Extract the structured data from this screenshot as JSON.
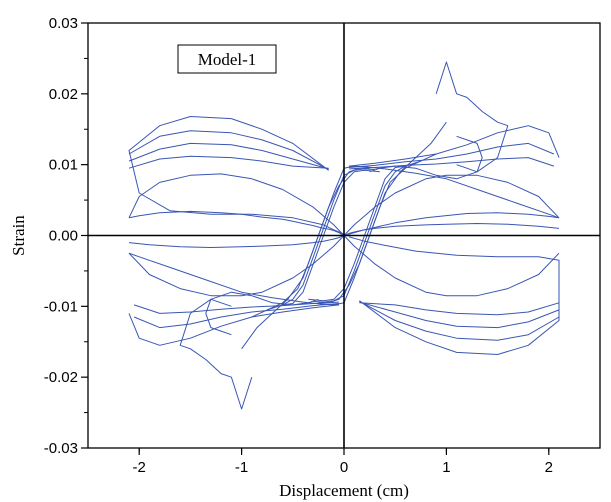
{
  "chart_data": {
    "type": "line",
    "title": "",
    "xlabel": "Displacement (cm)",
    "ylabel": "Strain",
    "xlim": [
      -2.5,
      2.5
    ],
    "ylim": [
      -0.03,
      0.03
    ],
    "x_ticks": [
      {
        "value": -2,
        "label": "-2"
      },
      {
        "value": -1,
        "label": "-1"
      },
      {
        "value": 0,
        "label": "0"
      },
      {
        "value": 1,
        "label": "1"
      },
      {
        "value": 2,
        "label": "2"
      }
    ],
    "y_ticks": [
      {
        "value": 0.03,
        "label": "0.03"
      },
      {
        "value": 0.02,
        "label": "0.02"
      },
      {
        "value": 0.01,
        "label": "0.01"
      },
      {
        "value": 0.0,
        "label": "0.00"
      },
      {
        "value": -0.01,
        "label": "-0.01"
      },
      {
        "value": -0.02,
        "label": "-0.02"
      },
      {
        "value": -0.03,
        "label": "-0.03"
      }
    ],
    "grid": false,
    "zero_lines": true,
    "legend": {
      "label": "Model-1",
      "placement": "top-left"
    },
    "series_color": "#3a56b4",
    "series": [
      {
        "name": "",
        "x": [
          0,
          -0.05,
          -0.1,
          -0.15,
          -0.2,
          -0.3,
          -0.4,
          -0.5,
          -0.6,
          -0.8,
          -1.0,
          -1.2,
          -1.5,
          -1.8,
          -2.0,
          -2.1
        ],
        "y": [
          0,
          0.0004,
          0.0007,
          0.0009,
          0.001,
          0.0014,
          0.0017,
          0.002,
          0.0023,
          0.0026,
          0.003,
          0.0032,
          0.0034,
          0.0032,
          0.0028,
          0.0025
        ]
      },
      {
        "name": "",
        "x": [
          -2.1,
          -2.0,
          -1.8,
          -1.5,
          -1.2,
          -0.9,
          -0.6,
          -0.3,
          -0.1,
          0
        ],
        "y": [
          0.0025,
          0.0055,
          0.0075,
          0.0085,
          0.0087,
          0.008,
          0.0065,
          0.004,
          0.0015,
          0
        ]
      },
      {
        "name": "",
        "x": [
          0,
          0.1,
          0.3,
          0.5,
          0.8,
          1.0,
          1.3,
          1.6,
          1.9,
          2.1
        ],
        "y": [
          0,
          0.0015,
          0.004,
          0.006,
          0.008,
          0.0085,
          0.0085,
          0.0075,
          0.0055,
          0.0025
        ]
      },
      {
        "name": "",
        "x": [
          2.1,
          2.0,
          1.8,
          1.5,
          1.2,
          0.8,
          0.5,
          0.2,
          0
        ],
        "y": [
          0.0025,
          0.0027,
          0.003,
          0.0032,
          0.0031,
          0.0025,
          0.0018,
          0.0008,
          0
        ]
      },
      {
        "name": "",
        "x": [
          -0.15,
          -0.5,
          -0.8,
          -1.1,
          -1.5,
          -1.8,
          -2.1,
          -2.0,
          -1.7,
          -1.3,
          -0.9,
          -0.5,
          -0.2,
          -0.1,
          0
        ],
        "y": [
          0.0092,
          0.013,
          0.015,
          0.0165,
          0.0168,
          0.0155,
          0.012,
          0.006,
          0.0035,
          0.003,
          0.003,
          0.0025,
          0.0015,
          0.0008,
          0.0002
        ]
      },
      {
        "name": "",
        "x": [
          -0.15,
          -0.5,
          -0.8,
          -1.1,
          -1.5,
          -1.8,
          -2.1
        ],
        "y": [
          0.0093,
          0.012,
          0.0135,
          0.0145,
          0.0148,
          0.014,
          0.0115
        ]
      },
      {
        "name": "",
        "x": [
          -0.15,
          -0.5,
          -0.8,
          -1.1,
          -1.5,
          -1.8,
          -2.1
        ],
        "y": [
          0.0094,
          0.0108,
          0.012,
          0.0128,
          0.013,
          0.0122,
          0.0105
        ]
      },
      {
        "name": "",
        "x": [
          -0.15,
          -0.5,
          -0.8,
          -1.1,
          -1.5,
          -1.8,
          -2.1
        ],
        "y": [
          0.0095,
          0.0098,
          0.0105,
          0.011,
          0.0112,
          0.0108,
          0.0095
        ]
      },
      {
        "name": "",
        "x": [
          0.05,
          0.3,
          0.6,
          0.9,
          1.2,
          1.5,
          1.8,
          2.0,
          2.1
        ],
        "y": [
          0.0098,
          0.0102,
          0.0108,
          0.0115,
          0.0128,
          0.0145,
          0.0155,
          0.0145,
          0.011
        ]
      },
      {
        "name": "",
        "x": [
          0.05,
          0.3,
          0.6,
          0.9,
          1.2,
          1.5,
          1.8,
          2.05
        ],
        "y": [
          0.0096,
          0.0099,
          0.0104,
          0.0108,
          0.0115,
          0.0125,
          0.013,
          0.0115
        ]
      },
      {
        "name": "",
        "x": [
          0.05,
          0.3,
          0.6,
          0.9,
          1.2,
          1.5,
          1.8,
          2.05
        ],
        "y": [
          0.0094,
          0.0096,
          0.0099,
          0.0101,
          0.0104,
          0.0108,
          0.011,
          0.0098
        ]
      },
      {
        "name": "",
        "x": [
          2.1,
          2.0,
          1.7,
          1.4,
          1.0,
          0.7,
          0.4,
          0.2,
          0.05
        ],
        "y": [
          0.0025,
          0.003,
          0.0045,
          0.006,
          0.008,
          0.0088,
          0.0094,
          0.0097,
          0.0098
        ]
      },
      {
        "name": "",
        "x": [
          0.9,
          1.0,
          1.1,
          1.2,
          1.35,
          1.5,
          1.6,
          1.5,
          1.3,
          1.1,
          0.9,
          0.7,
          0.5,
          0.35,
          0.25
        ],
        "y": [
          0.02,
          0.0245,
          0.02,
          0.0195,
          0.0175,
          0.016,
          0.0155,
          0.011,
          0.009,
          0.008,
          0.0085,
          0.0095,
          0.0098,
          0.0095,
          0.009
        ]
      },
      {
        "name": "",
        "x": [
          -0.9,
          -1.0,
          -1.1,
          -1.2,
          -1.35,
          -1.5,
          -1.6,
          -1.5,
          -1.3,
          -1.1,
          -0.9,
          -0.7,
          -0.5,
          -0.35,
          -0.25
        ],
        "y": [
          -0.02,
          -0.0245,
          -0.02,
          -0.0195,
          -0.0175,
          -0.016,
          -0.0155,
          -0.011,
          -0.009,
          -0.008,
          -0.0085,
          -0.0095,
          -0.0098,
          -0.0095,
          -0.009
        ]
      },
      {
        "name": "",
        "x": [
          -1.0,
          -0.85,
          -0.7,
          -0.55,
          -0.4,
          -0.3,
          -0.2,
          -0.1,
          0.0,
          0.1,
          0.2
        ],
        "y": [
          -0.016,
          -0.013,
          -0.011,
          -0.009,
          -0.006,
          -0.002,
          0.002,
          0.006,
          0.0095,
          0.0098,
          0.0097
        ]
      },
      {
        "name": "",
        "x": [
          -0.9,
          -0.75,
          -0.6,
          -0.45,
          -0.35,
          -0.25,
          -0.15,
          -0.05,
          0.05,
          0.15,
          0.25
        ],
        "y": [
          -0.0115,
          -0.0105,
          -0.0095,
          -0.0075,
          -0.004,
          0.0,
          0.004,
          0.007,
          0.009,
          0.0095,
          0.0095
        ]
      },
      {
        "name": "",
        "x": [
          -0.75,
          -0.6,
          -0.5,
          -0.4,
          -0.3,
          -0.2,
          -0.1,
          0.0,
          0.1,
          0.2,
          0.3
        ],
        "y": [
          -0.0105,
          -0.0098,
          -0.009,
          -0.007,
          -0.003,
          0.001,
          0.005,
          0.0085,
          0.0092,
          0.0094,
          0.0093
        ]
      },
      {
        "name": "",
        "x": [
          -0.6,
          -0.5,
          -0.4,
          -0.3,
          -0.2,
          -0.1,
          0.0,
          0.1,
          0.2,
          0.35
        ],
        "y": [
          -0.0098,
          -0.0096,
          -0.008,
          -0.004,
          0.0,
          0.004,
          0.0075,
          0.009,
          0.0092,
          0.009
        ]
      },
      {
        "name": "",
        "x": [
          1.0,
          0.85,
          0.7,
          0.55,
          0.4,
          0.3,
          0.2,
          0.1,
          0.0,
          -0.1,
          -0.2
        ],
        "y": [
          0.016,
          0.013,
          0.011,
          0.009,
          0.006,
          0.002,
          -0.002,
          -0.006,
          -0.0095,
          -0.0098,
          -0.0097
        ]
      },
      {
        "name": "",
        "x": [
          0.9,
          0.75,
          0.6,
          0.45,
          0.35,
          0.25,
          0.15,
          0.05,
          -0.05,
          -0.15,
          -0.25
        ],
        "y": [
          0.0115,
          0.0105,
          0.0095,
          0.0075,
          0.004,
          0.0,
          -0.004,
          -0.007,
          -0.009,
          -0.0095,
          -0.0095
        ]
      },
      {
        "name": "",
        "x": [
          0.75,
          0.6,
          0.5,
          0.4,
          0.3,
          0.2,
          0.1,
          0.0,
          -0.1,
          -0.2,
          -0.3
        ],
        "y": [
          0.0105,
          0.0098,
          0.009,
          0.007,
          0.003,
          -0.001,
          -0.005,
          -0.0085,
          -0.0092,
          -0.0094,
          -0.0093
        ]
      },
      {
        "name": "",
        "x": [
          0.6,
          0.5,
          0.4,
          0.3,
          0.2,
          0.1,
          0.0,
          -0.1,
          -0.2,
          -0.35
        ],
        "y": [
          0.0098,
          0.0096,
          0.008,
          0.004,
          0.0,
          -0.004,
          -0.0075,
          -0.009,
          -0.0092,
          -0.009
        ]
      },
      {
        "name": "",
        "x": [
          -0.05,
          -0.3,
          -0.6,
          -0.9,
          -1.2,
          -1.5,
          -1.8,
          -2.0,
          -2.1
        ],
        "y": [
          -0.0098,
          -0.0102,
          -0.0108,
          -0.0115,
          -0.0128,
          -0.0145,
          -0.0155,
          -0.0145,
          -0.011
        ]
      },
      {
        "name": "",
        "x": [
          -0.05,
          -0.3,
          -0.6,
          -0.9,
          -1.2,
          -1.5,
          -1.8,
          -2.05
        ],
        "y": [
          -0.0096,
          -0.0099,
          -0.0104,
          -0.0108,
          -0.0115,
          -0.0125,
          -0.013,
          -0.0115
        ]
      },
      {
        "name": "",
        "x": [
          -0.05,
          -0.3,
          -0.6,
          -0.9,
          -1.2,
          -1.5,
          -1.8,
          -2.05
        ],
        "y": [
          -0.0094,
          -0.0096,
          -0.0099,
          -0.0101,
          -0.0104,
          -0.0108,
          -0.011,
          -0.0098
        ]
      },
      {
        "name": "",
        "x": [
          -2.1,
          -2.0,
          -1.7,
          -1.4,
          -1.0,
          -0.7,
          -0.4,
          -0.2,
          -0.05
        ],
        "y": [
          -0.0025,
          -0.003,
          -0.0045,
          -0.006,
          -0.008,
          -0.0088,
          -0.0094,
          -0.0097,
          -0.0098
        ]
      },
      {
        "name": "",
        "x": [
          0.15,
          0.5,
          0.8,
          1.1,
          1.5,
          1.8,
          2.1,
          2.1,
          1.9,
          1.5,
          1.1,
          0.7,
          0.4,
          0.2,
          0.05
        ],
        "y": [
          -0.0092,
          -0.013,
          -0.015,
          -0.0165,
          -0.0168,
          -0.0155,
          -0.012,
          -0.0035,
          -0.003,
          -0.003,
          -0.0028,
          -0.0022,
          -0.0014,
          -0.0008,
          -0.0002
        ]
      },
      {
        "name": "",
        "x": [
          0.15,
          0.5,
          0.8,
          1.1,
          1.5,
          1.8,
          2.1
        ],
        "y": [
          -0.0093,
          -0.012,
          -0.0135,
          -0.0145,
          -0.0148,
          -0.014,
          -0.0115
        ]
      },
      {
        "name": "",
        "x": [
          0.15,
          0.5,
          0.8,
          1.1,
          1.5,
          1.8,
          2.1
        ],
        "y": [
          -0.0094,
          -0.0108,
          -0.012,
          -0.0128,
          -0.013,
          -0.0122,
          -0.0105
        ]
      },
      {
        "name": "",
        "x": [
          0.15,
          0.5,
          0.8,
          1.1,
          1.5,
          1.8,
          2.1
        ],
        "y": [
          -0.0095,
          -0.0098,
          -0.0105,
          -0.011,
          -0.0112,
          -0.0108,
          -0.0095
        ]
      },
      {
        "name": "",
        "x": [
          0,
          0.1,
          0.3,
          0.5,
          0.8,
          1.0,
          1.3,
          1.6,
          1.9,
          2.1
        ],
        "y": [
          0,
          -0.0015,
          -0.004,
          -0.006,
          -0.008,
          -0.0085,
          -0.0085,
          -0.0075,
          -0.0055,
          -0.0025
        ]
      },
      {
        "name": "",
        "x": [
          0,
          -0.1,
          -0.3,
          -0.5,
          -0.8,
          -1.0,
          -1.3,
          -1.6,
          -1.9,
          -2.1
        ],
        "y": [
          0,
          -0.0015,
          -0.004,
          -0.006,
          -0.008,
          -0.0085,
          -0.0085,
          -0.0075,
          -0.0055,
          -0.0025
        ]
      },
      {
        "name": "",
        "x": [
          0,
          0.05,
          0.1,
          0.2,
          0.3,
          0.5,
          0.8,
          1.0,
          1.3,
          1.6,
          1.9,
          2.1
        ],
        "y": [
          0,
          0.0003,
          0.0005,
          0.0008,
          0.001,
          0.0013,
          0.0015,
          0.0016,
          0.0017,
          0.0016,
          0.0013,
          0.001
        ]
      },
      {
        "name": "",
        "x": [
          0,
          -0.05,
          -0.1,
          -0.2,
          -0.3,
          -0.5,
          -0.8,
          -1.0,
          -1.3,
          -1.6,
          -1.9,
          -2.1
        ],
        "y": [
          0,
          -0.0003,
          -0.0005,
          -0.0008,
          -0.001,
          -0.0013,
          -0.0015,
          -0.0016,
          -0.0017,
          -0.0016,
          -0.0013,
          -0.001
        ]
      },
      {
        "name": "",
        "x": [
          1.1,
          1.2,
          1.3,
          1.35,
          1.3,
          1.2,
          1.1
        ],
        "y": [
          0.014,
          0.0135,
          0.013,
          0.011,
          0.009,
          0.0095,
          0.01
        ]
      },
      {
        "name": "",
        "x": [
          -1.1,
          -1.2,
          -1.3,
          -1.35,
          -1.3,
          -1.2,
          -1.1
        ],
        "y": [
          -0.014,
          -0.0135,
          -0.013,
          -0.011,
          -0.009,
          -0.0095,
          -0.01
        ]
      }
    ]
  }
}
